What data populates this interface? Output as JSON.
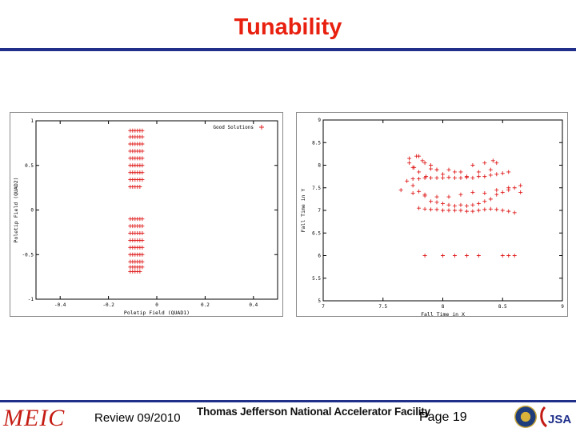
{
  "title": "Tunability",
  "footer": {
    "logo_text": "MEIC",
    "review_label": "Review 09/2010",
    "facility": "Thomas Jefferson National Accelerator Facility",
    "page": "Page 19",
    "logo_right_text": "JSA"
  },
  "colors": {
    "title": "#e8200f",
    "rule": "#1f2f8a",
    "points": "#e02020"
  },
  "chart_data": [
    {
      "type": "scatter",
      "xlabel": "Poletip Field (QUAD1)",
      "ylabel": "Poletip Field (QUAD2)",
      "xlim": [
        -0.5,
        0.5
      ],
      "ylim": [
        -1,
        1
      ],
      "xticks": [
        "-0.4",
        "-0.2",
        "0",
        "0.2",
        "0.4"
      ],
      "xtick_values": [
        -0.4,
        -0.2,
        0,
        0.2,
        0.4
      ],
      "yticks": [
        "1",
        "0.5",
        "0",
        "-0.5",
        "-1"
      ],
      "ytick_values": [
        1,
        0.5,
        0,
        -0.5,
        -1
      ],
      "legend_position": "top-right",
      "series": [
        {
          "name": "Good Solutions",
          "x": [
            -0.11,
            -0.1,
            -0.09,
            -0.08,
            -0.07,
            -0.06,
            -0.11,
            -0.1,
            -0.09,
            -0.08,
            -0.07,
            -0.06,
            -0.11,
            -0.1,
            -0.09,
            -0.08,
            -0.07,
            -0.06,
            -0.11,
            -0.1,
            -0.09,
            -0.08,
            -0.07,
            -0.06,
            -0.11,
            -0.1,
            -0.09,
            -0.08,
            -0.07,
            -0.06,
            -0.11,
            -0.1,
            -0.09,
            -0.08,
            -0.07,
            -0.06,
            -0.11,
            -0.1,
            -0.09,
            -0.08,
            -0.07,
            -0.06,
            -0.11,
            -0.1,
            -0.09,
            -0.08,
            -0.07,
            -0.06,
            -0.11,
            -0.1,
            -0.09,
            -0.08,
            -0.07,
            -0.11,
            -0.1,
            -0.09,
            -0.08,
            -0.07,
            -0.06,
            -0.11,
            -0.1,
            -0.09,
            -0.08,
            -0.07,
            -0.06,
            -0.11,
            -0.1,
            -0.09,
            -0.08,
            -0.07,
            -0.06,
            -0.11,
            -0.1,
            -0.09,
            -0.08,
            -0.07,
            -0.06,
            -0.11,
            -0.1,
            -0.09,
            -0.08,
            -0.07,
            -0.06,
            -0.11,
            -0.1,
            -0.09,
            -0.08,
            -0.07,
            -0.06,
            -0.11,
            -0.1,
            -0.09,
            -0.08,
            -0.07,
            -0.06,
            -0.11,
            -0.1,
            -0.09,
            -0.08,
            -0.07,
            -0.06,
            -0.11,
            -0.1,
            -0.09,
            -0.08,
            -0.07
          ],
          "y": [
            0.89,
            0.89,
            0.89,
            0.89,
            0.89,
            0.89,
            0.82,
            0.82,
            0.82,
            0.82,
            0.82,
            0.82,
            0.74,
            0.74,
            0.74,
            0.74,
            0.74,
            0.74,
            0.66,
            0.66,
            0.66,
            0.66,
            0.66,
            0.66,
            0.58,
            0.58,
            0.58,
            0.58,
            0.58,
            0.58,
            0.5,
            0.5,
            0.5,
            0.5,
            0.5,
            0.5,
            0.42,
            0.42,
            0.42,
            0.42,
            0.42,
            0.42,
            0.34,
            0.34,
            0.34,
            0.34,
            0.34,
            0.34,
            0.26,
            0.26,
            0.26,
            0.26,
            0.26,
            -0.1,
            -0.1,
            -0.1,
            -0.1,
            -0.1,
            -0.1,
            -0.18,
            -0.18,
            -0.18,
            -0.18,
            -0.18,
            -0.18,
            -0.26,
            -0.26,
            -0.26,
            -0.26,
            -0.26,
            -0.26,
            -0.34,
            -0.34,
            -0.34,
            -0.34,
            -0.34,
            -0.34,
            -0.42,
            -0.42,
            -0.42,
            -0.42,
            -0.42,
            -0.42,
            -0.5,
            -0.5,
            -0.5,
            -0.5,
            -0.5,
            -0.5,
            -0.58,
            -0.58,
            -0.58,
            -0.58,
            -0.58,
            -0.58,
            -0.64,
            -0.64,
            -0.64,
            -0.64,
            -0.64,
            -0.64,
            -0.69,
            -0.69,
            -0.69,
            -0.69,
            -0.69
          ]
        }
      ]
    },
    {
      "type": "scatter",
      "xlabel": "Fall Time in X",
      "ylabel": "Fall Time in Y",
      "xlim": [
        7,
        9
      ],
      "ylim": [
        5,
        9
      ],
      "xticks": [
        "7",
        "7.5",
        "8",
        "8.5",
        "9"
      ],
      "xtick_values": [
        7,
        7.5,
        8,
        8.5,
        9
      ],
      "yticks": [
        "9",
        "8.5",
        "8",
        "7.5",
        "7",
        "6.5",
        "6",
        "5.5",
        "5"
      ],
      "ytick_values": [
        9,
        8.5,
        8,
        7.5,
        7,
        6.5,
        6,
        5.5,
        5
      ],
      "series": [
        {
          "name": "",
          "x": [
            7.7,
            7.75,
            7.8,
            7.85,
            7.9,
            7.95,
            8.0,
            8.05,
            8.1,
            8.15,
            8.2,
            8.25,
            8.3,
            8.35,
            8.4,
            8.45,
            8.5,
            8.55,
            8.6,
            8.65,
            7.75,
            7.8,
            7.85,
            7.9,
            7.95,
            8.0,
            8.05,
            8.1,
            8.15,
            8.2,
            8.25,
            8.3,
            8.35,
            8.4,
            8.45,
            8.5,
            8.55,
            7.8,
            7.85,
            7.9,
            7.95,
            8.0,
            8.05,
            8.1,
            8.15,
            8.2,
            8.25,
            8.3,
            8.35,
            8.4,
            8.45,
            8.5,
            8.55,
            8.6,
            7.72,
            7.75,
            7.78,
            7.8,
            7.83,
            7.86,
            7.9,
            7.95,
            8.0,
            8.1,
            8.2,
            8.3,
            8.4,
            8.45,
            7.72,
            7.76,
            7.8,
            7.85,
            7.9,
            7.95,
            8.05,
            8.15,
            8.25,
            8.35,
            8.42,
            7.65,
            7.75,
            7.85,
            7.95,
            8.05,
            8.15,
            8.25,
            8.35,
            8.45,
            8.55,
            8.65,
            7.85,
            8.0,
            8.1,
            8.2,
            8.3,
            8.5,
            8.55,
            8.6
          ],
          "y": [
            7.65,
            7.55,
            7.42,
            7.32,
            7.2,
            7.18,
            7.15,
            7.12,
            7.1,
            7.12,
            7.1,
            7.12,
            7.15,
            7.2,
            7.25,
            7.35,
            7.4,
            7.5,
            7.5,
            7.55,
            7.7,
            7.7,
            7.72,
            7.72,
            7.72,
            7.72,
            7.73,
            7.72,
            7.72,
            7.73,
            7.72,
            7.75,
            7.75,
            7.78,
            7.8,
            7.82,
            7.85,
            7.05,
            7.03,
            7.02,
            7.02,
            7.0,
            7.0,
            7.0,
            7.0,
            6.98,
            6.98,
            7.0,
            7.02,
            7.03,
            7.02,
            7.0,
            6.98,
            6.95,
            8.05,
            7.95,
            8.2,
            7.85,
            8.1,
            7.75,
            8.0,
            7.9,
            7.8,
            7.85,
            7.75,
            7.85,
            7.9,
            8.05,
            8.15,
            7.95,
            8.2,
            8.05,
            7.92,
            7.9,
            7.9,
            7.85,
            8.0,
            8.05,
            8.1,
            7.45,
            7.38,
            7.35,
            7.3,
            7.3,
            7.35,
            7.4,
            7.38,
            7.45,
            7.45,
            7.4,
            6.0,
            6.0,
            6.0,
            6.0,
            6.0,
            6.0,
            6.0,
            6.0
          ]
        }
      ]
    }
  ]
}
